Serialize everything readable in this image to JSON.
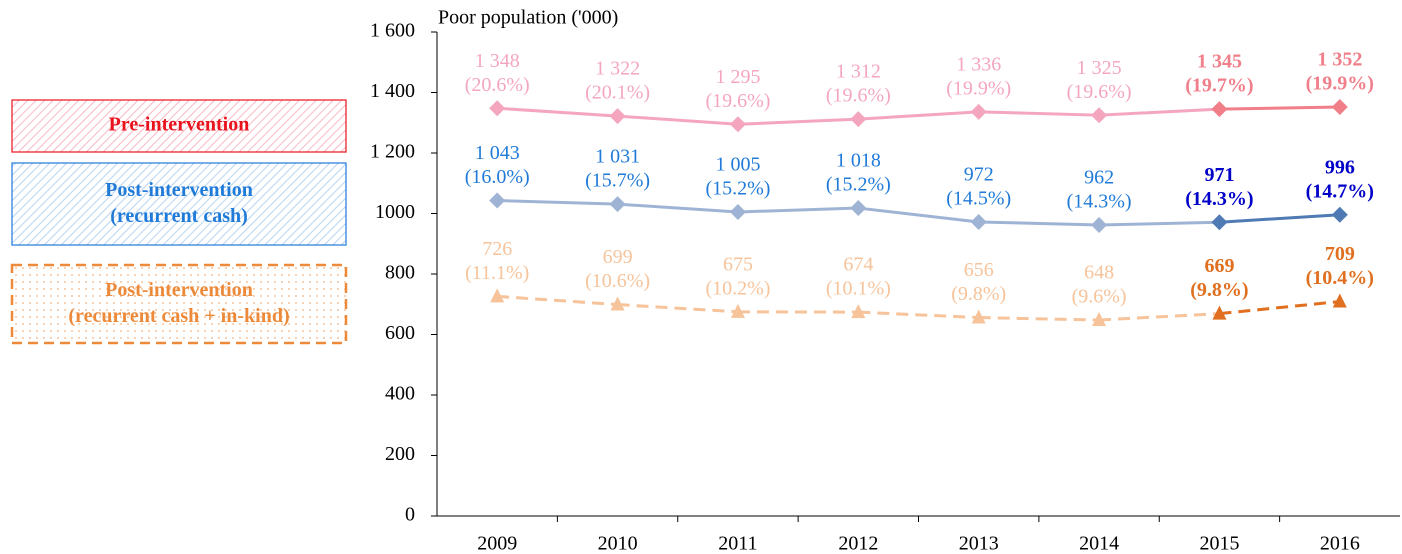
{
  "chart_data": {
    "type": "line",
    "y_axis_title": "Poor population ('000)",
    "categories": [
      "2009",
      "2010",
      "2011",
      "2012",
      "2013",
      "2014",
      "2015",
      "2016"
    ],
    "ylim": [
      0,
      1600
    ],
    "yticks": [
      0,
      200,
      400,
      600,
      800,
      1000,
      {
        "value": 1200,
        "label": "1 200"
      },
      {
        "value": 1400,
        "label": "1 400"
      },
      {
        "value": 1600,
        "label": "1 600"
      }
    ],
    "series": [
      {
        "name": "Pre-intervention",
        "color": "#f4a6bf",
        "legend_color": "#e8131c",
        "marker": "diamond",
        "dashed": false,
        "values": [
          1348,
          1322,
          1295,
          1312,
          1336,
          1325,
          1345,
          1352
        ],
        "value_labels": [
          "1 348",
          "1 322",
          "1 295",
          "1 312",
          "1 336",
          "1 325",
          "1 345",
          "1 352"
        ],
        "share_labels": [
          "(20.6%)",
          "(20.1%)",
          "(19.6%)",
          "(19.6%)",
          "(19.9%)",
          "(19.6%)",
          "(19.7%)",
          "(19.9%)"
        ],
        "point_colors": [
          "#f4a6bf",
          "#f4a6bf",
          "#f4a6bf",
          "#f4a6bf",
          "#f4a6bf",
          "#f4a6bf",
          "#f07f8a",
          "#f07f8a"
        ],
        "label_colors": [
          "#f4a6bf",
          "#f4a6bf",
          "#f4a6bf",
          "#f4a6bf",
          "#f4a6bf",
          "#f4a6bf",
          "#f07f8a",
          "#f07f8a"
        ],
        "label_bold": [
          false,
          false,
          false,
          false,
          false,
          false,
          true,
          true
        ]
      },
      {
        "name": "Post-intervention (recurrent cash)",
        "color": "#9fb4d4",
        "legend_color": "#1f7ad8",
        "marker": "diamond",
        "dashed": false,
        "values": [
          1043,
          1031,
          1005,
          1018,
          972,
          962,
          971,
          996
        ],
        "value_labels": [
          "1 043",
          "1 031",
          "1 005",
          "1 018",
          "972",
          "962",
          "971",
          "996"
        ],
        "share_labels": [
          "(16.0%)",
          "(15.7%)",
          "(15.2%)",
          "(15.2%)",
          "(14.5%)",
          "(14.3%)",
          "(14.3%)",
          "(14.7%)"
        ],
        "point_colors": [
          "#9fb4d4",
          "#9fb4d4",
          "#9fb4d4",
          "#9fb4d4",
          "#9fb4d4",
          "#9fb4d4",
          "#4f7ab3",
          "#4f7ab3"
        ],
        "label_colors": [
          "#1f7ad8",
          "#1f7ad8",
          "#1f7ad8",
          "#1f7ad8",
          "#1f7ad8",
          "#1f7ad8",
          "#0000c8",
          "#0000c8"
        ],
        "label_bold": [
          false,
          false,
          false,
          false,
          false,
          false,
          true,
          true
        ]
      },
      {
        "name": "Post-intervention (recurrent cash + in-kind)",
        "color": "#f6c39a",
        "legend_color": "#ec8a3a",
        "marker": "triangle",
        "dashed": true,
        "values": [
          726,
          699,
          675,
          674,
          656,
          648,
          669,
          709
        ],
        "value_labels": [
          "726",
          "699",
          "675",
          "674",
          "656",
          "648",
          "669",
          "709"
        ],
        "share_labels": [
          "(11.1%)",
          "(10.6%)",
          "(10.2%)",
          "(10.1%)",
          "(9.8%)",
          "(9.6%)",
          "(9.8%)",
          "(10.4%)"
        ],
        "point_colors": [
          "#f6c39a",
          "#f6c39a",
          "#f6c39a",
          "#f6c39a",
          "#f6c39a",
          "#f6c39a",
          "#e07020",
          "#e07020"
        ],
        "label_colors": [
          "#f6c39a",
          "#f6c39a",
          "#f6c39a",
          "#f6c39a",
          "#f6c39a",
          "#f6c39a",
          "#e07020",
          "#e07020"
        ],
        "label_bold": [
          false,
          false,
          false,
          false,
          false,
          false,
          true,
          true
        ]
      }
    ]
  }
}
